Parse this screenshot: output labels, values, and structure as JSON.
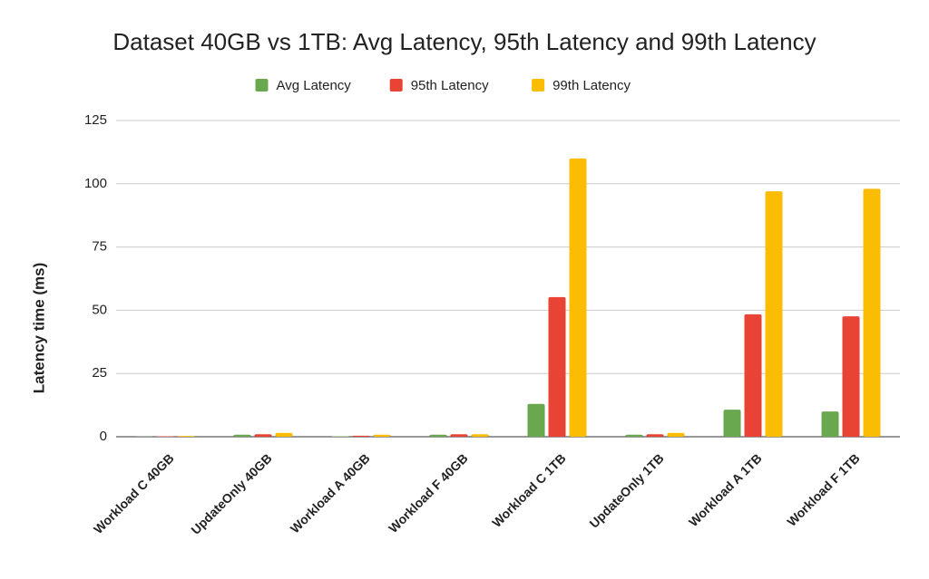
{
  "chart_data": {
    "type": "bar",
    "title": "Dataset 40GB vs 1TB: Avg Latency, 95th Latency and 99th Latency",
    "y_label": "Latency time (ms)",
    "categories": [
      "Workload C 40GB",
      "UpdateOnly 40GB",
      "Workload A 40GB",
      "Workload F 40GB",
      "Workload C 1TB",
      "UpdateOnly 1TB",
      "Workload A 1TB",
      "Workload F 1TB"
    ],
    "series": [
      {
        "name": "Avg Latency",
        "color": "#6aa84f",
        "values": [
          0.1,
          0.8,
          0.2,
          0.8,
          13,
          0.8,
          10.7,
          10
        ]
      },
      {
        "name": "95th Latency",
        "color": "#e94335",
        "values": [
          0.2,
          1,
          0.4,
          1,
          55.2,
          1,
          48.4,
          47.6
        ]
      },
      {
        "name": "99th Latency",
        "color": "#fbbc04",
        "values": [
          0.3,
          1.5,
          0.8,
          1,
          110,
          1.5,
          97,
          98
        ]
      }
    ],
    "ylim": [
      0,
      125
    ],
    "yticks": [
      0,
      25,
      50,
      75,
      100,
      125
    ],
    "grid": true,
    "legend": "top"
  }
}
